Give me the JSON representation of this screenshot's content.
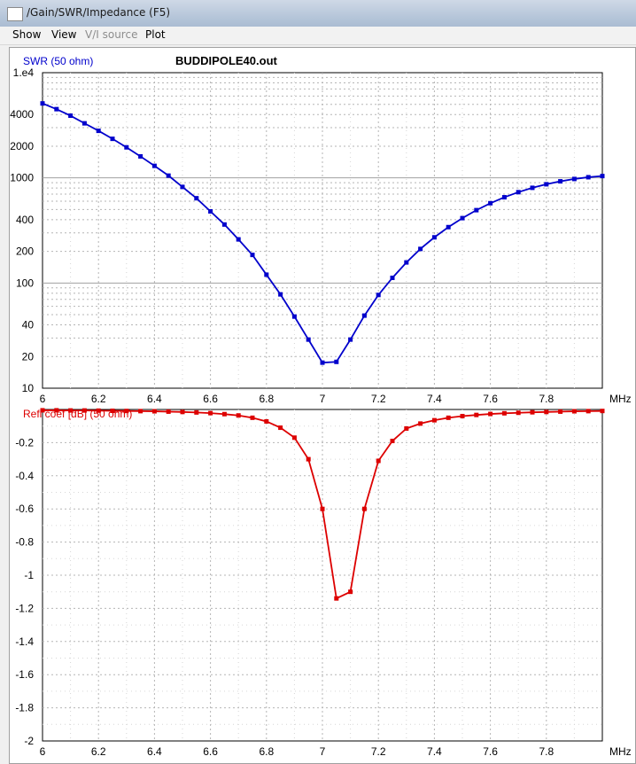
{
  "window": {
    "title": "/Gain/SWR/Impedance (F5)"
  },
  "menu": {
    "items": [
      "Show",
      "View",
      "V/I source",
      "Plot"
    ]
  },
  "file_label": "BUDDIPOLE40.out",
  "colors": {
    "swr": "#0000cc",
    "refl": "#dd0000"
  },
  "chart_data": [
    {
      "type": "line",
      "title": "",
      "ylabel": "SWR (50 ohm)",
      "xlabel": "MHz",
      "yscale": "log",
      "ylim": [
        10,
        10000
      ],
      "xlim": [
        6.0,
        8.0
      ],
      "grid": true,
      "x_ticks": [
        "6",
        "6.2",
        "6.4",
        "6.6",
        "6.8",
        "7",
        "7.2",
        "7.4",
        "7.6",
        "7.8"
      ],
      "y_ticks": [
        {
          "value": 10,
          "label": "10"
        },
        {
          "value": 20,
          "label": "20"
        },
        {
          "value": 40,
          "label": "40"
        },
        {
          "value": 100,
          "label": "100"
        },
        {
          "value": 200,
          "label": "200"
        },
        {
          "value": 400,
          "label": "400"
        },
        {
          "value": 1000,
          "label": "1000"
        },
        {
          "value": 2000,
          "label": "2000"
        },
        {
          "value": 4000,
          "label": "4000"
        },
        {
          "value": 10000,
          "label": "1.e4"
        }
      ],
      "series": [
        {
          "x": [
            6.0,
            6.05,
            6.1,
            6.15,
            6.2,
            6.25,
            6.3,
            6.35,
            6.4,
            6.45,
            6.5,
            6.55,
            6.6,
            6.65,
            6.7,
            6.75,
            6.8,
            6.85,
            6.9,
            6.95,
            7.0,
            7.05,
            7.1,
            7.15,
            7.2,
            7.25,
            7.3,
            7.35,
            7.4,
            7.45,
            7.5,
            7.55,
            7.6,
            7.65,
            7.7,
            7.75,
            7.8,
            7.85,
            7.9,
            7.95,
            8.0
          ],
          "values": [
            5100,
            4500,
            3900,
            3300,
            2800,
            2350,
            1950,
            1600,
            1300,
            1050,
            820,
            640,
            480,
            360,
            260,
            185,
            120,
            78,
            48,
            29,
            17.5,
            17.8,
            29,
            49,
            77,
            112,
            157,
            211,
            272,
            340,
            414,
            493,
            574,
            654,
            731,
            804,
            869,
            927,
            976,
            1014,
            1040
          ]
        }
      ]
    },
    {
      "type": "line",
      "title": "",
      "ylabel": "Refl coef [dB] (50 ohm)",
      "xlabel": "MHz",
      "ylim": [
        -2.0,
        0.0
      ],
      "xlim": [
        6.0,
        8.0
      ],
      "grid": true,
      "x_ticks": [
        "6",
        "6.2",
        "6.4",
        "6.6",
        "6.8",
        "7",
        "7.2",
        "7.4",
        "7.6",
        "7.8"
      ],
      "y_ticks": [
        {
          "value": -0.2,
          "label": "-0.2"
        },
        {
          "value": -0.4,
          "label": "-0.4"
        },
        {
          "value": -0.6,
          "label": "-0.6"
        },
        {
          "value": -0.8,
          "label": "-0.8"
        },
        {
          "value": -1.0,
          "label": "-1"
        },
        {
          "value": -1.2,
          "label": "-1.2"
        },
        {
          "value": -1.4,
          "label": "-1.4"
        },
        {
          "value": -1.6,
          "label": "-1.6"
        },
        {
          "value": -1.8,
          "label": "-1.8"
        },
        {
          "value": -2.0,
          "label": "-2"
        }
      ],
      "series": [
        {
          "x": [
            6.0,
            6.05,
            6.1,
            6.15,
            6.2,
            6.25,
            6.3,
            6.35,
            6.4,
            6.45,
            6.5,
            6.55,
            6.6,
            6.65,
            6.7,
            6.75,
            6.8,
            6.85,
            6.9,
            6.95,
            7.0,
            7.05,
            7.1,
            7.15,
            7.2,
            7.25,
            7.3,
            7.35,
            7.4,
            7.45,
            7.5,
            7.55,
            7.6,
            7.65,
            7.7,
            7.75,
            7.8,
            7.85,
            7.9,
            7.95,
            8.0
          ],
          "values": [
            -0.005,
            -0.005,
            -0.006,
            -0.006,
            -0.007,
            -0.008,
            -0.009,
            -0.01,
            -0.011,
            -0.013,
            -0.015,
            -0.018,
            -0.022,
            -0.028,
            -0.036,
            -0.05,
            -0.072,
            -0.11,
            -0.17,
            -0.3,
            -0.6,
            -1.14,
            -1.1,
            -0.6,
            -0.31,
            -0.19,
            -0.115,
            -0.085,
            -0.065,
            -0.05,
            -0.04,
            -0.033,
            -0.027,
            -0.023,
            -0.02,
            -0.017,
            -0.015,
            -0.013,
            -0.011,
            -0.01,
            -0.009
          ]
        }
      ]
    }
  ]
}
